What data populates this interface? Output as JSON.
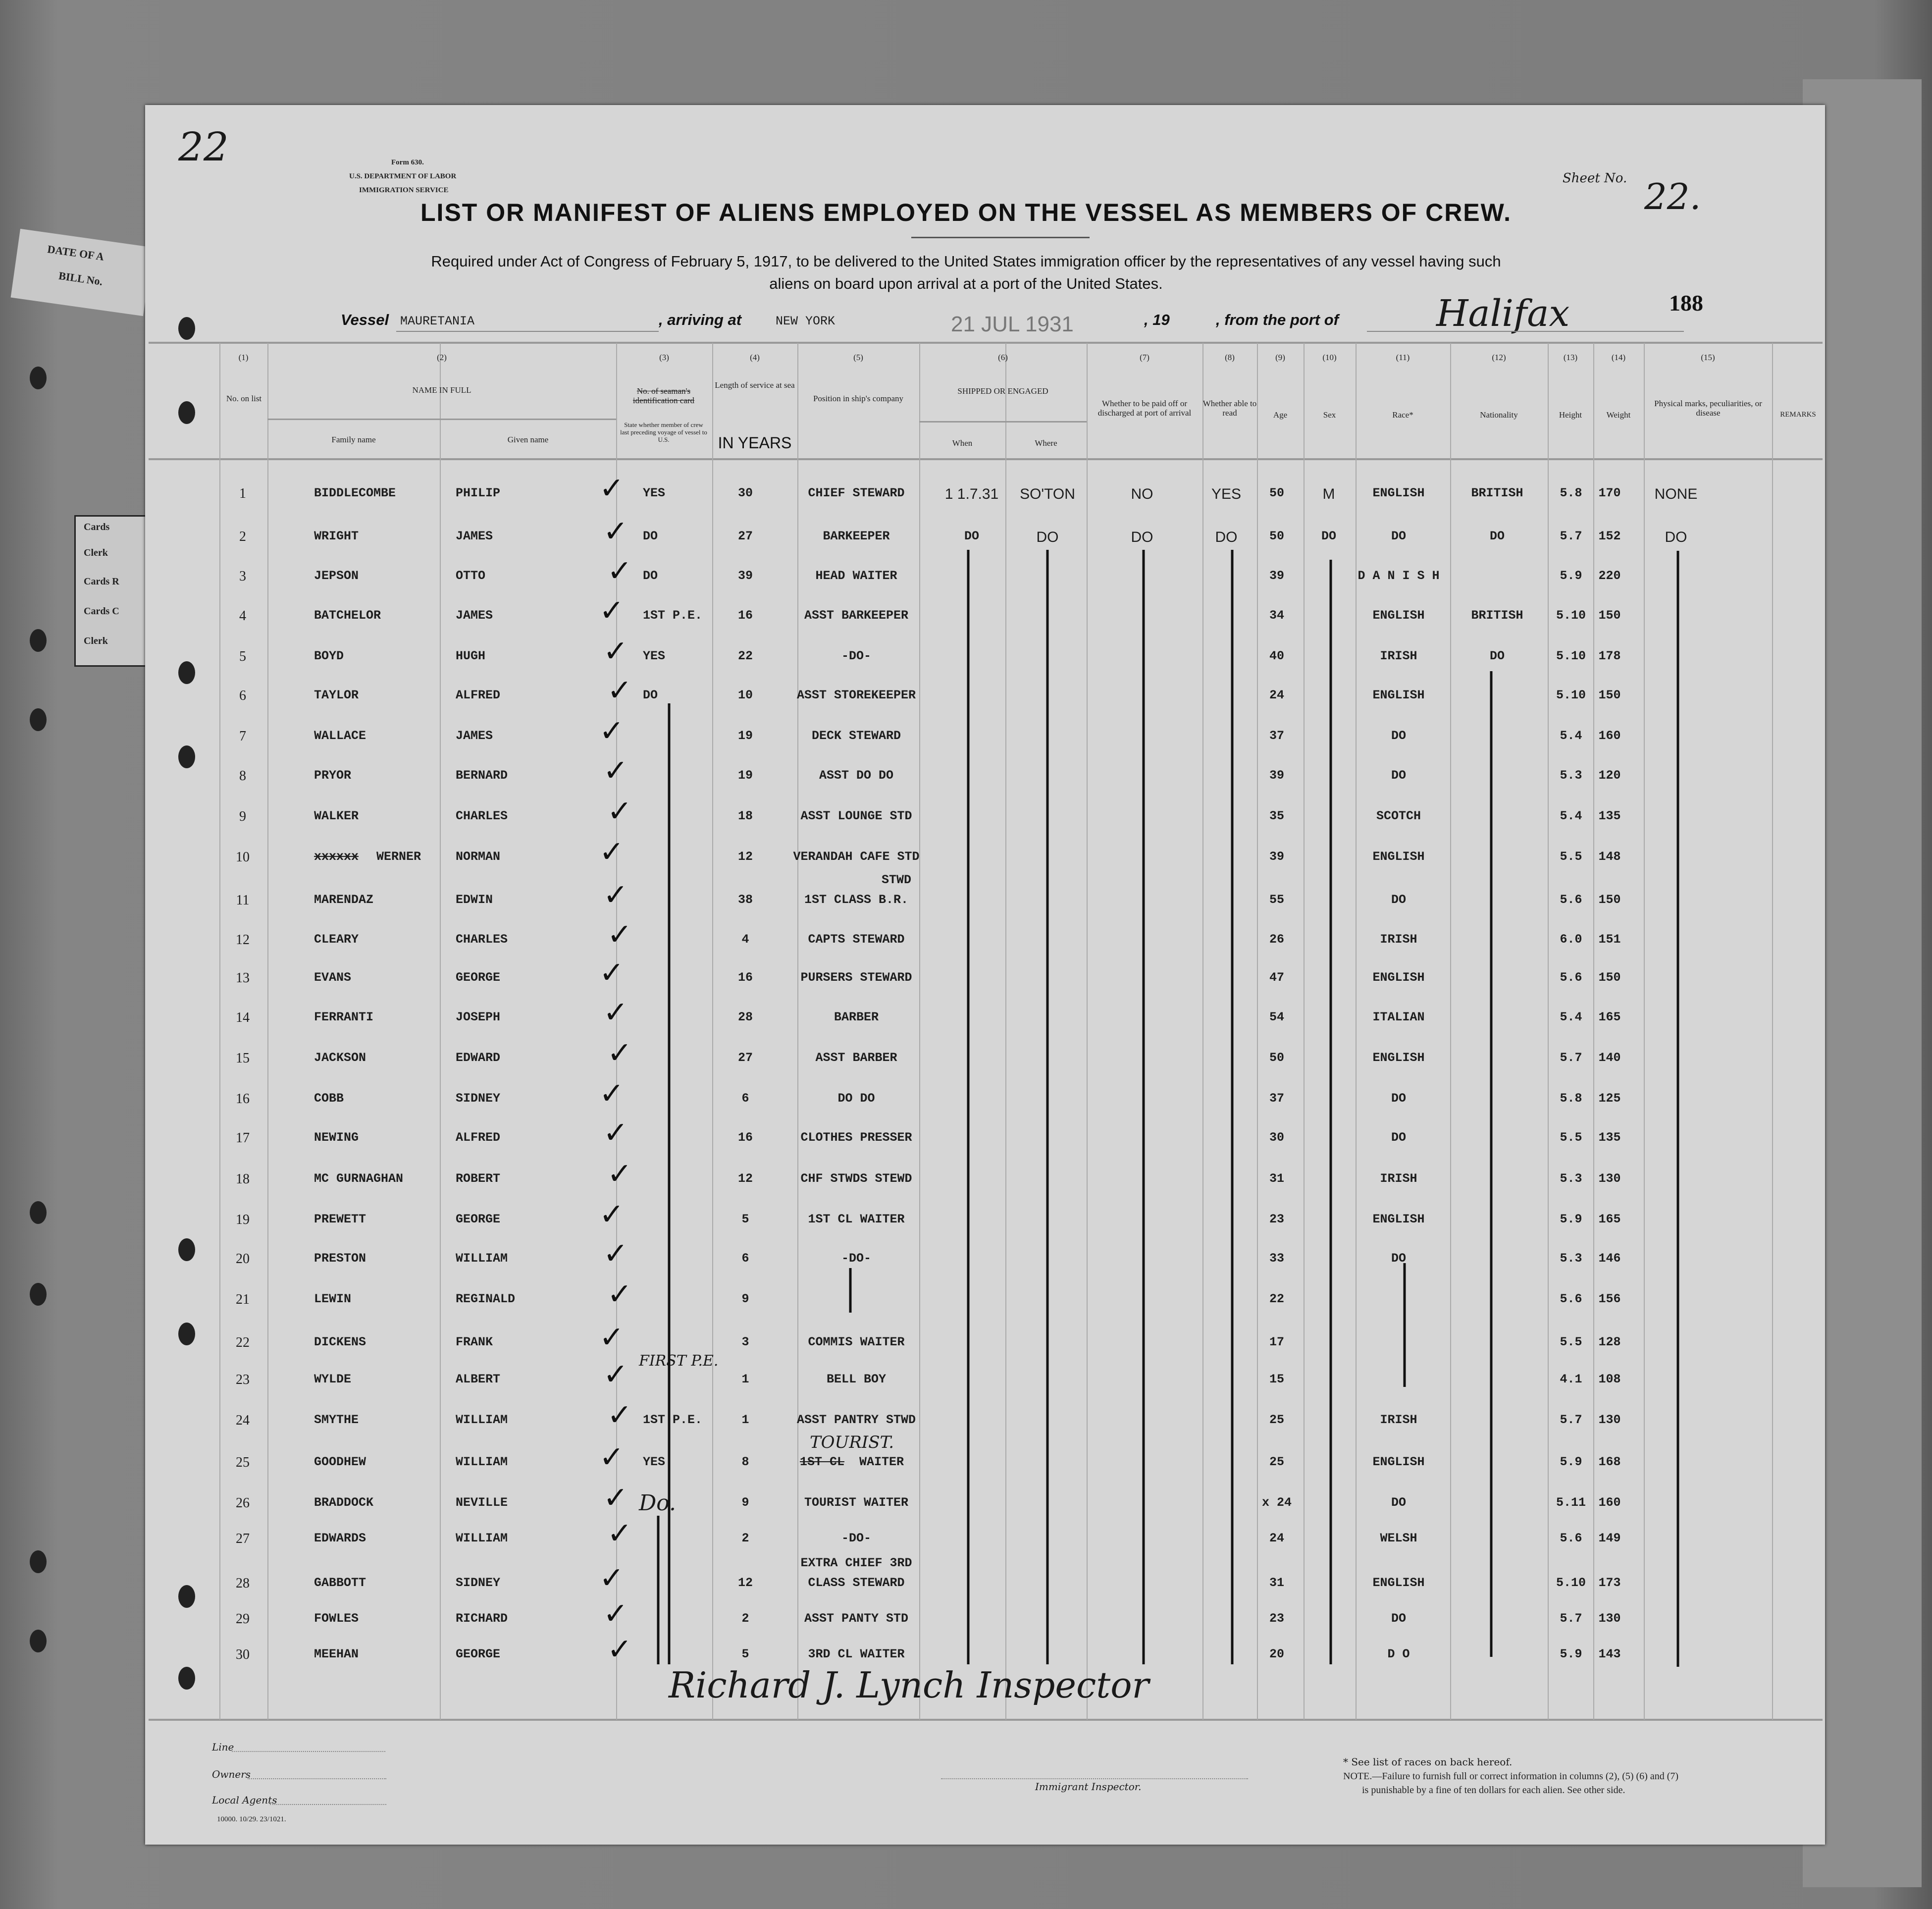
{
  "sheet_corner_mark": "22",
  "form_header": {
    "form_no": "Form 630.",
    "department": "U.S. DEPARTMENT OF LABOR",
    "service": "IMMIGRATION SERVICE"
  },
  "sheet": {
    "label": "Sheet No.",
    "value": "22."
  },
  "title": "LIST OR MANIFEST OF ALIENS EMPLOYED ON THE VESSEL AS MEMBERS OF CREW.",
  "subtitle_line1": "Required under Act of Congress of February 5, 1917, to be delivered to the United States immigration officer by the representatives of any vessel having such",
  "subtitle_line2": "aliens on board upon arrival at a port of the United States.",
  "voyage": {
    "vessel_label": "Vessel",
    "vessel": "MAURETANIA",
    "arriving_label": ", arriving at",
    "arriving": "NEW YORK",
    "date_stamp": "21 JUL 1931",
    "year_label": ", 19",
    "from_label": ", from the port of",
    "from_port": "Halifax",
    "page_number": "188"
  },
  "side_stubs": {
    "top": [
      "DATE OF A",
      "BILL No."
    ],
    "cards": [
      "Cards",
      "Clerk",
      "Cards R",
      "Cards C",
      "Clerk"
    ]
  },
  "columns": {
    "nums": [
      "(1)",
      "(2)",
      "(3)",
      "(4)",
      "(5)",
      "(6)",
      "(7)",
      "(8)",
      "(9)",
      "(10)",
      "(11)",
      "(12)",
      "(13)",
      "(14)",
      "(15)"
    ],
    "no_on_list": "No. on list",
    "name_in_full": "NAME IN FULL",
    "family_name": "Family name",
    "given_name": "Given name",
    "card_struck": "No. of seaman's identification card",
    "card_note": "State whether member of crew last preceding voyage of vessel to U.S.",
    "length_service": "Length of service at sea",
    "length_typed": "IN YEARS",
    "position": "Position in ship's company",
    "shipped": "SHIPPED OR ENGAGED",
    "when": "When",
    "where": "Where",
    "paid_off": "Whether to be paid off or discharged at port of arrival",
    "read": "Whether able to read",
    "age": "Age",
    "sex": "Sex",
    "race": "Race*",
    "nationality": "Nationality",
    "height": "Height",
    "weight": "Weight",
    "marks": "Physical marks, peculiarities, or disease",
    "remarks": "REMARKS"
  },
  "rows": [
    {
      "no": "1",
      "family": "BIDDLECOMBE",
      "given": "PHILIP",
      "card": "YES",
      "years": "30",
      "position": "CHIEF STEWARD",
      "when": "1 1.7.31",
      "where": "SO'TON",
      "paid": "NO",
      "read": "YES",
      "age": "50",
      "sex": "M",
      "race": "ENGLISH",
      "nat": "BRITISH",
      "height": "5.8",
      "weight": "170",
      "marks": "NONE"
    },
    {
      "no": "2",
      "family": "WRIGHT",
      "given": "JAMES",
      "card": "DO",
      "years": "27",
      "position": "BARKEEPER",
      "when": "DO",
      "where": "DO",
      "paid": "DO",
      "read": "DO",
      "age": "50",
      "sex": "DO",
      "race": "DO",
      "nat": "DO",
      "height": "5.7",
      "weight": "152",
      "marks": "DO"
    },
    {
      "no": "3",
      "family": "JEPSON",
      "given": "OTTO",
      "card": "DO",
      "years": "39",
      "position": "HEAD WAITER",
      "age": "39",
      "race": "D A N I S H",
      "height": "5.9",
      "weight": "220"
    },
    {
      "no": "4",
      "family": "BATCHELOR",
      "given": "JAMES",
      "card": "1ST P.E.",
      "years": "16",
      "position": "ASST BARKEEPER",
      "age": "34",
      "race": "ENGLISH",
      "nat": "BRITISH",
      "height": "5.10",
      "weight": "150"
    },
    {
      "no": "5",
      "family": "BOYD",
      "given": "HUGH",
      "card": "YES",
      "years": "22",
      "position": "-DO-",
      "age": "40",
      "race": "IRISH",
      "nat": "DO",
      "height": "5.10",
      "weight": "178"
    },
    {
      "no": "6",
      "family": "TAYLOR",
      "given": "ALFRED",
      "card": "DO",
      "years": "10",
      "position": "ASST STOREKEEPER",
      "age": "24",
      "race": "ENGLISH",
      "height": "5.10",
      "weight": "150"
    },
    {
      "no": "7",
      "family": "WALLACE",
      "given": "JAMES",
      "years": "19",
      "position": "DECK STEWARD",
      "age": "37",
      "race": "DO",
      "height": "5.4",
      "weight": "160"
    },
    {
      "no": "8",
      "family": "PRYOR",
      "given": "BERNARD",
      "years": "19",
      "position": "ASST DO DO",
      "age": "39",
      "race": "DO",
      "height": "5.3",
      "weight": "120"
    },
    {
      "no": "9",
      "family": "WALKER",
      "given": "CHARLES",
      "years": "18",
      "position": "ASST LOUNGE STD",
      "age": "35",
      "race": "SCOTCH",
      "height": "5.4",
      "weight": "135"
    },
    {
      "no": "10",
      "family": "WERNER",
      "family_struck": "xxxxxx",
      "given": "NORMAN",
      "years": "12",
      "position": "VERANDAH CAFE STD",
      "age": "39",
      "race": "ENGLISH",
      "height": "5.5",
      "weight": "148"
    },
    {
      "no": "11",
      "family": "MARENDAZ",
      "given": "EDWIN",
      "years": "38",
      "position": "1ST CLASS B.R.",
      "position_above": "STWD",
      "age": "55",
      "race": "DO",
      "height": "5.6",
      "weight": "150"
    },
    {
      "no": "12",
      "family": "CLEARY",
      "given": "CHARLES",
      "years": "4",
      "position": "CAPTS STEWARD",
      "age": "26",
      "race": "IRISH",
      "height": "6.0",
      "weight": "151"
    },
    {
      "no": "13",
      "family": "EVANS",
      "given": "GEORGE",
      "years": "16",
      "position": "PURSERS STEWARD",
      "age": "47",
      "race": "ENGLISH",
      "height": "5.6",
      "weight": "150"
    },
    {
      "no": "14",
      "family": "FERRANTI",
      "given": "JOSEPH",
      "years": "28",
      "position": "BARBER",
      "age": "54",
      "race": "ITALIAN",
      "height": "5.4",
      "weight": "165"
    },
    {
      "no": "15",
      "family": "JACKSON",
      "given": "EDWARD",
      "years": "27",
      "position": "ASST BARBER",
      "age": "50",
      "race": "ENGLISH",
      "height": "5.7",
      "weight": "140"
    },
    {
      "no": "16",
      "family": "COBB",
      "given": "SIDNEY",
      "years": "6",
      "position": "DO DO",
      "age": "37",
      "race": "DO",
      "height": "5.8",
      "weight": "125"
    },
    {
      "no": "17",
      "family": "NEWING",
      "given": "ALFRED",
      "years": "16",
      "position": "CLOTHES PRESSER",
      "age": "30",
      "race": "DO",
      "height": "5.5",
      "weight": "135"
    },
    {
      "no": "18",
      "family": "MC GURNAGHAN",
      "given": "ROBERT",
      "years": "12",
      "position": "CHF STWDS STEWD",
      "age": "31",
      "race": "IRISH",
      "height": "5.3",
      "weight": "130"
    },
    {
      "no": "19",
      "family": "PREWETT",
      "given": "GEORGE",
      "years": "5",
      "position": "1ST CL WAITER",
      "age": "23",
      "race": "ENGLISH",
      "height": "5.9",
      "weight": "165"
    },
    {
      "no": "20",
      "family": "PRESTON",
      "given": "WILLIAM",
      "years": "6",
      "position": "-DO-",
      "age": "33",
      "race": "DO",
      "height": "5.3",
      "weight": "146"
    },
    {
      "no": "21",
      "family": "LEWIN",
      "given": "REGINALD",
      "years": "9",
      "age": "22",
      "height": "5.6",
      "weight": "156"
    },
    {
      "no": "22",
      "family": "DICKENS",
      "given": "FRANK",
      "years": "3",
      "position": "COMMIS WAITER",
      "age": "17",
      "height": "5.5",
      "weight": "128"
    },
    {
      "no": "23",
      "family": "WYLDE",
      "given": "ALBERT",
      "card_hand": "FIRST P.E.",
      "years": "1",
      "position": "BELL BOY",
      "age": "15",
      "height": "4.1",
      "weight": "108"
    },
    {
      "no": "24",
      "family": "SMYTHE",
      "given": "WILLIAM",
      "card": "1ST P.E.",
      "years": "1",
      "position": "ASST PANTRY STWD",
      "age": "25",
      "race": "IRISH",
      "height": "5.7",
      "weight": "130"
    },
    {
      "no": "25",
      "family": "GOODHEW",
      "given": "WILLIAM",
      "card": "YES",
      "years": "8",
      "position_struck": "1ST CL",
      "position_hand": "TOURIST.",
      "position": "WAITER",
      "age": "25",
      "race": "ENGLISH",
      "height": "5.9",
      "weight": "168"
    },
    {
      "no": "26",
      "family": "BRADDOCK",
      "given": "NEVILLE",
      "card_hand": "Do.",
      "years": "9",
      "position": "TOURIST WAITER",
      "age": "x 24",
      "race": "DO",
      "height": "5.11",
      "weight": "160"
    },
    {
      "no": "27",
      "family": "EDWARDS",
      "given": "WILLIAM",
      "years": "2",
      "position": "-DO-",
      "age": "24",
      "race": "WELSH",
      "height": "5.6",
      "weight": "149"
    },
    {
      "no": "28",
      "family": "GABBOTT",
      "given": "SIDNEY",
      "years": "12",
      "position_above": "EXTRA CHIEF 3RD",
      "position": "CLASS STEWARD",
      "age": "31",
      "race": "ENGLISH",
      "height": "5.10",
      "weight": "173"
    },
    {
      "no": "29",
      "family": "FOWLES",
      "given": "RICHARD",
      "years": "2",
      "position": "ASST PANTY STD",
      "age": "23",
      "race": "DO",
      "height": "5.7",
      "weight": "130"
    },
    {
      "no": "30",
      "family": "MEEHAN",
      "given": "GEORGE",
      "years": "5",
      "position": "3RD CL WAITER",
      "age": "20",
      "race": "D O",
      "height": "5.9",
      "weight": "143"
    }
  ],
  "signature": "Richard J. Lynch   Inspector",
  "footer": {
    "line_label": "Line",
    "owners_label": "Owners",
    "local_agents_label": "Local Agents",
    "print_code": "10000. 10/29. 23/1021.",
    "inspector_label": "Immigrant Inspector.",
    "races_note": "* See list of races on back hereof.",
    "note_line1": "NOTE.—Failure to furnish full or correct information in columns (2), (5) (6) and (7)",
    "note_line2": "is punishable by a fine of ten dollars for each alien.  See other side."
  }
}
